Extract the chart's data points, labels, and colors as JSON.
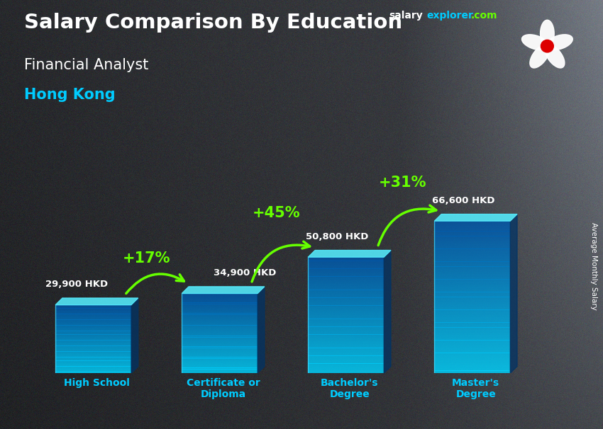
{
  "title_main": "Salary Comparison By Education",
  "title_sub": "Financial Analyst",
  "title_location": "Hong Kong",
  "ylabel_rotated": "Average Monthly Salary",
  "categories": [
    "High School",
    "Certificate or\nDiploma",
    "Bachelor's\nDegree",
    "Master's\nDegree"
  ],
  "values": [
    29900,
    34900,
    50800,
    66600
  ],
  "labels": [
    "29,900 HKD",
    "34,900 HKD",
    "50,800 HKD",
    "66,600 HKD"
  ],
  "pct_changes": [
    "+17%",
    "+45%",
    "+31%"
  ],
  "bar_color_top": "#00d4ff",
  "bar_color_bottom": "#0055aa",
  "bar_color_side": "#004488",
  "bar_color_face_light": "#00bbee",
  "text_color_white": "#ffffff",
  "text_color_cyan": "#00ccff",
  "text_color_green": "#66ff00",
  "bg_gray": "#505560",
  "bar_width": 0.6,
  "bar_alpha": 0.82,
  "figsize": [
    8.5,
    6.06
  ],
  "dpi": 100,
  "website_color_salary": "#ffffff",
  "website_color_explorer": "#00ccff",
  "website_color_com": "#66ff00"
}
